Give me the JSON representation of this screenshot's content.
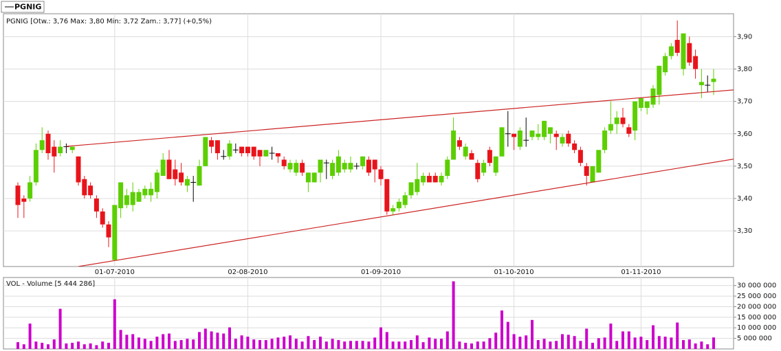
{
  "chart_data": [
    {
      "type": "candlestick",
      "legend": "PGNIG",
      "title": "PGNIG [Otw.: 3,76  Max: 3,80  Min: 3,72  Zam.: 3,77] (+0,5%)",
      "up_color": "#5ccf00",
      "down_color": "#e8141b",
      "flat_color": "#000000",
      "trendline_color": "#cc2222",
      "grid": true,
      "categories": [
        null,
        null,
        null,
        null,
        null,
        null,
        null,
        null,
        null,
        null,
        null,
        null,
        null,
        null,
        null,
        null,
        "01-07-2010",
        null,
        null,
        null,
        null,
        null,
        null,
        null,
        null,
        null,
        null,
        null,
        null,
        null,
        null,
        null,
        null,
        null,
        null,
        null,
        null,
        null,
        "02-08-2010",
        null,
        null,
        null,
        null,
        null,
        null,
        null,
        null,
        null,
        null,
        null,
        null,
        null,
        null,
        null,
        null,
        null,
        null,
        null,
        null,
        null,
        "01-09-2010",
        null,
        null,
        null,
        null,
        null,
        null,
        null,
        null,
        null,
        null,
        null,
        null,
        null,
        null,
        null,
        null,
        null,
        null,
        null,
        null,
        null,
        "01-10-2010",
        null,
        null,
        null,
        null,
        null,
        null,
        null,
        null,
        null,
        null,
        null,
        null,
        null,
        null,
        null,
        null,
        null,
        null,
        null,
        null,
        "01-11-2010",
        null,
        null,
        null,
        null,
        null,
        null,
        null,
        null,
        null,
        null,
        null,
        null
      ],
      "open": [
        3.44,
        3.4,
        3.4,
        3.45,
        3.55,
        3.6,
        3.56,
        3.54,
        3.56,
        3.55,
        3.53,
        3.46,
        3.44,
        3.4,
        3.36,
        3.32,
        3.21,
        3.37,
        3.38,
        3.38,
        3.39,
        3.41,
        3.41,
        3.42,
        3.47,
        3.52,
        3.49,
        3.48,
        3.44,
        3.45,
        3.44,
        3.5,
        3.58,
        3.58,
        3.53,
        3.53,
        3.55,
        3.56,
        3.56,
        3.56,
        3.55,
        3.53,
        3.54,
        3.54,
        3.52,
        3.49,
        3.48,
        3.51,
        3.45,
        3.45,
        3.48,
        3.51,
        3.47,
        3.48,
        3.49,
        3.49,
        3.5,
        3.5,
        3.52,
        3.52,
        3.49,
        3.46,
        3.36,
        3.37,
        3.38,
        3.41,
        3.42,
        3.45,
        3.47,
        3.47,
        3.45,
        3.47,
        3.52,
        3.58,
        3.53,
        3.54,
        3.51,
        3.48,
        3.55,
        3.48,
        3.53,
        3.6,
        3.6,
        3.56,
        3.58,
        3.59,
        3.59,
        3.59,
        3.6,
        3.6,
        3.57,
        3.6,
        3.57,
        3.55,
        3.5,
        3.45,
        3.48,
        3.55,
        3.61,
        3.63,
        3.65,
        3.62,
        3.61,
        3.68,
        3.68,
        3.69,
        3.72,
        3.79,
        3.84,
        3.89,
        3.8,
        3.88,
        3.84,
        3.75,
        3.75,
        3.76
      ],
      "high": [
        3.45,
        3.41,
        3.47,
        3.57,
        3.62,
        3.61,
        3.58,
        3.58,
        3.57,
        3.56,
        3.53,
        3.47,
        3.45,
        3.41,
        3.37,
        3.33,
        3.38,
        3.45,
        3.43,
        3.45,
        3.43,
        3.44,
        3.45,
        3.49,
        3.54,
        3.55,
        3.52,
        3.51,
        3.47,
        3.47,
        3.52,
        3.59,
        3.59,
        3.58,
        3.55,
        3.58,
        3.57,
        3.56,
        3.56,
        3.56,
        3.55,
        3.55,
        3.56,
        3.54,
        3.53,
        3.52,
        3.52,
        3.52,
        3.48,
        3.48,
        3.52,
        3.52,
        3.52,
        3.55,
        3.52,
        3.53,
        3.51,
        3.53,
        3.53,
        3.52,
        3.5,
        3.46,
        3.38,
        3.4,
        3.42,
        3.45,
        3.51,
        3.48,
        3.48,
        3.48,
        3.48,
        3.53,
        3.65,
        3.59,
        3.57,
        3.55,
        3.52,
        3.52,
        3.56,
        3.53,
        3.62,
        3.67,
        3.6,
        3.62,
        3.65,
        3.61,
        3.63,
        3.64,
        3.62,
        3.61,
        3.6,
        3.61,
        3.58,
        3.56,
        3.51,
        3.5,
        3.55,
        3.62,
        3.7,
        3.67,
        3.68,
        3.63,
        3.7,
        3.71,
        3.7,
        3.75,
        3.81,
        3.85,
        3.88,
        3.95,
        3.91,
        3.9,
        3.86,
        3.8,
        3.78,
        3.8
      ],
      "low": [
        3.34,
        3.34,
        3.39,
        3.44,
        3.54,
        3.52,
        3.48,
        3.53,
        3.54,
        3.54,
        3.44,
        3.4,
        3.4,
        3.34,
        3.31,
        3.25,
        3.21,
        3.34,
        3.37,
        3.36,
        3.39,
        3.4,
        3.39,
        3.4,
        3.47,
        3.46,
        3.44,
        3.44,
        3.42,
        3.39,
        3.44,
        3.5,
        3.54,
        3.52,
        3.52,
        3.52,
        3.54,
        3.53,
        3.53,
        3.52,
        3.5,
        3.53,
        3.52,
        3.51,
        3.49,
        3.48,
        3.47,
        3.47,
        3.42,
        3.45,
        3.45,
        3.46,
        3.46,
        3.47,
        3.48,
        3.48,
        3.49,
        3.49,
        3.47,
        3.45,
        3.44,
        3.35,
        3.35,
        3.36,
        3.37,
        3.4,
        3.41,
        3.44,
        3.45,
        3.45,
        3.44,
        3.46,
        3.52,
        3.55,
        3.52,
        3.52,
        3.45,
        3.47,
        3.5,
        3.47,
        3.53,
        3.56,
        3.55,
        3.55,
        3.56,
        3.58,
        3.58,
        3.58,
        3.57,
        3.55,
        3.56,
        3.56,
        3.54,
        3.5,
        3.44,
        3.45,
        3.48,
        3.54,
        3.6,
        3.6,
        3.62,
        3.59,
        3.58,
        3.67,
        3.66,
        3.68,
        3.69,
        3.78,
        3.83,
        3.84,
        3.78,
        3.81,
        3.77,
        3.71,
        3.73,
        3.72
      ],
      "close": [
        3.38,
        3.39,
        3.45,
        3.55,
        3.58,
        3.54,
        3.53,
        3.56,
        3.56,
        3.56,
        3.45,
        3.41,
        3.41,
        3.36,
        3.32,
        3.28,
        3.38,
        3.45,
        3.41,
        3.42,
        3.42,
        3.43,
        3.43,
        3.48,
        3.52,
        3.46,
        3.46,
        3.45,
        3.46,
        3.45,
        3.5,
        3.59,
        3.56,
        3.54,
        3.53,
        3.57,
        3.55,
        3.54,
        3.54,
        3.53,
        3.53,
        3.55,
        3.54,
        3.53,
        3.5,
        3.51,
        3.51,
        3.48,
        3.48,
        3.48,
        3.52,
        3.51,
        3.51,
        3.53,
        3.51,
        3.51,
        3.5,
        3.53,
        3.48,
        3.49,
        3.46,
        3.36,
        3.37,
        3.39,
        3.41,
        3.45,
        3.46,
        3.47,
        3.45,
        3.45,
        3.47,
        3.52,
        3.61,
        3.56,
        3.56,
        3.52,
        3.46,
        3.51,
        3.51,
        3.53,
        3.62,
        3.6,
        3.59,
        3.61,
        3.58,
        3.61,
        3.6,
        3.64,
        3.62,
        3.59,
        3.59,
        3.57,
        3.55,
        3.51,
        3.47,
        3.5,
        3.55,
        3.61,
        3.63,
        3.65,
        3.63,
        3.6,
        3.7,
        3.71,
        3.7,
        3.74,
        3.81,
        3.84,
        3.87,
        3.85,
        3.91,
        3.82,
        3.8,
        3.76,
        3.75,
        3.77
      ],
      "trendlines": [
        {
          "x": [
            8,
            119.2
          ],
          "y": [
            3.561,
            3.737
          ]
        },
        {
          "x": [
            10,
            120
          ],
          "y": [
            3.19,
            3.527
          ]
        }
      ],
      "ylim": [
        3.19,
        3.975
      ],
      "yticks": [
        {
          "value": 3.3,
          "label": "3,30"
        },
        {
          "value": 3.4,
          "label": "3,40"
        },
        {
          "value": 3.5,
          "label": "3,50"
        },
        {
          "value": 3.6,
          "label": "3,60"
        },
        {
          "value": 3.7,
          "label": "3,70"
        },
        {
          "value": 3.8,
          "label": "3,80"
        },
        {
          "value": 3.9,
          "label": "3,90"
        }
      ]
    },
    {
      "type": "bar",
      "title": "VOL - Volume [5 444 286]",
      "color": "#cc00cc",
      "grid": true,
      "values": [
        3200000,
        2200000,
        12000000,
        3500000,
        2900000,
        2200000,
        4500000,
        19000000,
        2600000,
        2900000,
        3500000,
        2200000,
        2600000,
        1800000,
        3500000,
        2900000,
        23500000,
        9000000,
        6700000,
        7000000,
        5400000,
        4800000,
        3800000,
        5800000,
        7000000,
        7300000,
        3800000,
        4200000,
        4800000,
        4500000,
        8000000,
        9600000,
        8300000,
        7700000,
        7300000,
        10200000,
        4800000,
        6400000,
        5800000,
        4500000,
        4200000,
        4200000,
        4800000,
        5400000,
        5800000,
        6400000,
        4800000,
        3500000,
        6100000,
        4200000,
        5800000,
        3500000,
        4800000,
        4200000,
        3500000,
        3800000,
        3800000,
        3800000,
        3500000,
        5400000,
        10200000,
        8000000,
        3500000,
        3500000,
        3500000,
        4200000,
        6400000,
        3200000,
        5400000,
        4800000,
        4800000,
        8300000,
        32000000,
        3500000,
        2900000,
        2600000,
        3500000,
        3500000,
        5100000,
        7700000,
        18200000,
        12800000,
        7000000,
        5800000,
        6400000,
        13700000,
        4200000,
        4800000,
        3500000,
        3800000,
        7000000,
        6700000,
        6100000,
        3800000,
        9600000,
        2900000,
        5100000,
        5400000,
        12000000,
        3800000,
        8300000,
        8300000,
        5400000,
        5800000,
        4200000,
        11200000,
        6100000,
        5800000,
        5400000,
        12500000,
        4200000,
        4500000,
        2600000,
        3500000,
        2200000,
        5444286
      ],
      "ylim": [
        0,
        32500000
      ],
      "yticks": [
        {
          "value": 5000000,
          "label": "5 000 000"
        },
        {
          "value": 10000000,
          "label": "10 000 000"
        },
        {
          "value": 15000000,
          "label": "15 000 000"
        },
        {
          "value": 20000000,
          "label": "20 000 000"
        },
        {
          "value": 25000000,
          "label": "25 000 000"
        },
        {
          "value": 30000000,
          "label": "30 000 000"
        }
      ]
    }
  ]
}
